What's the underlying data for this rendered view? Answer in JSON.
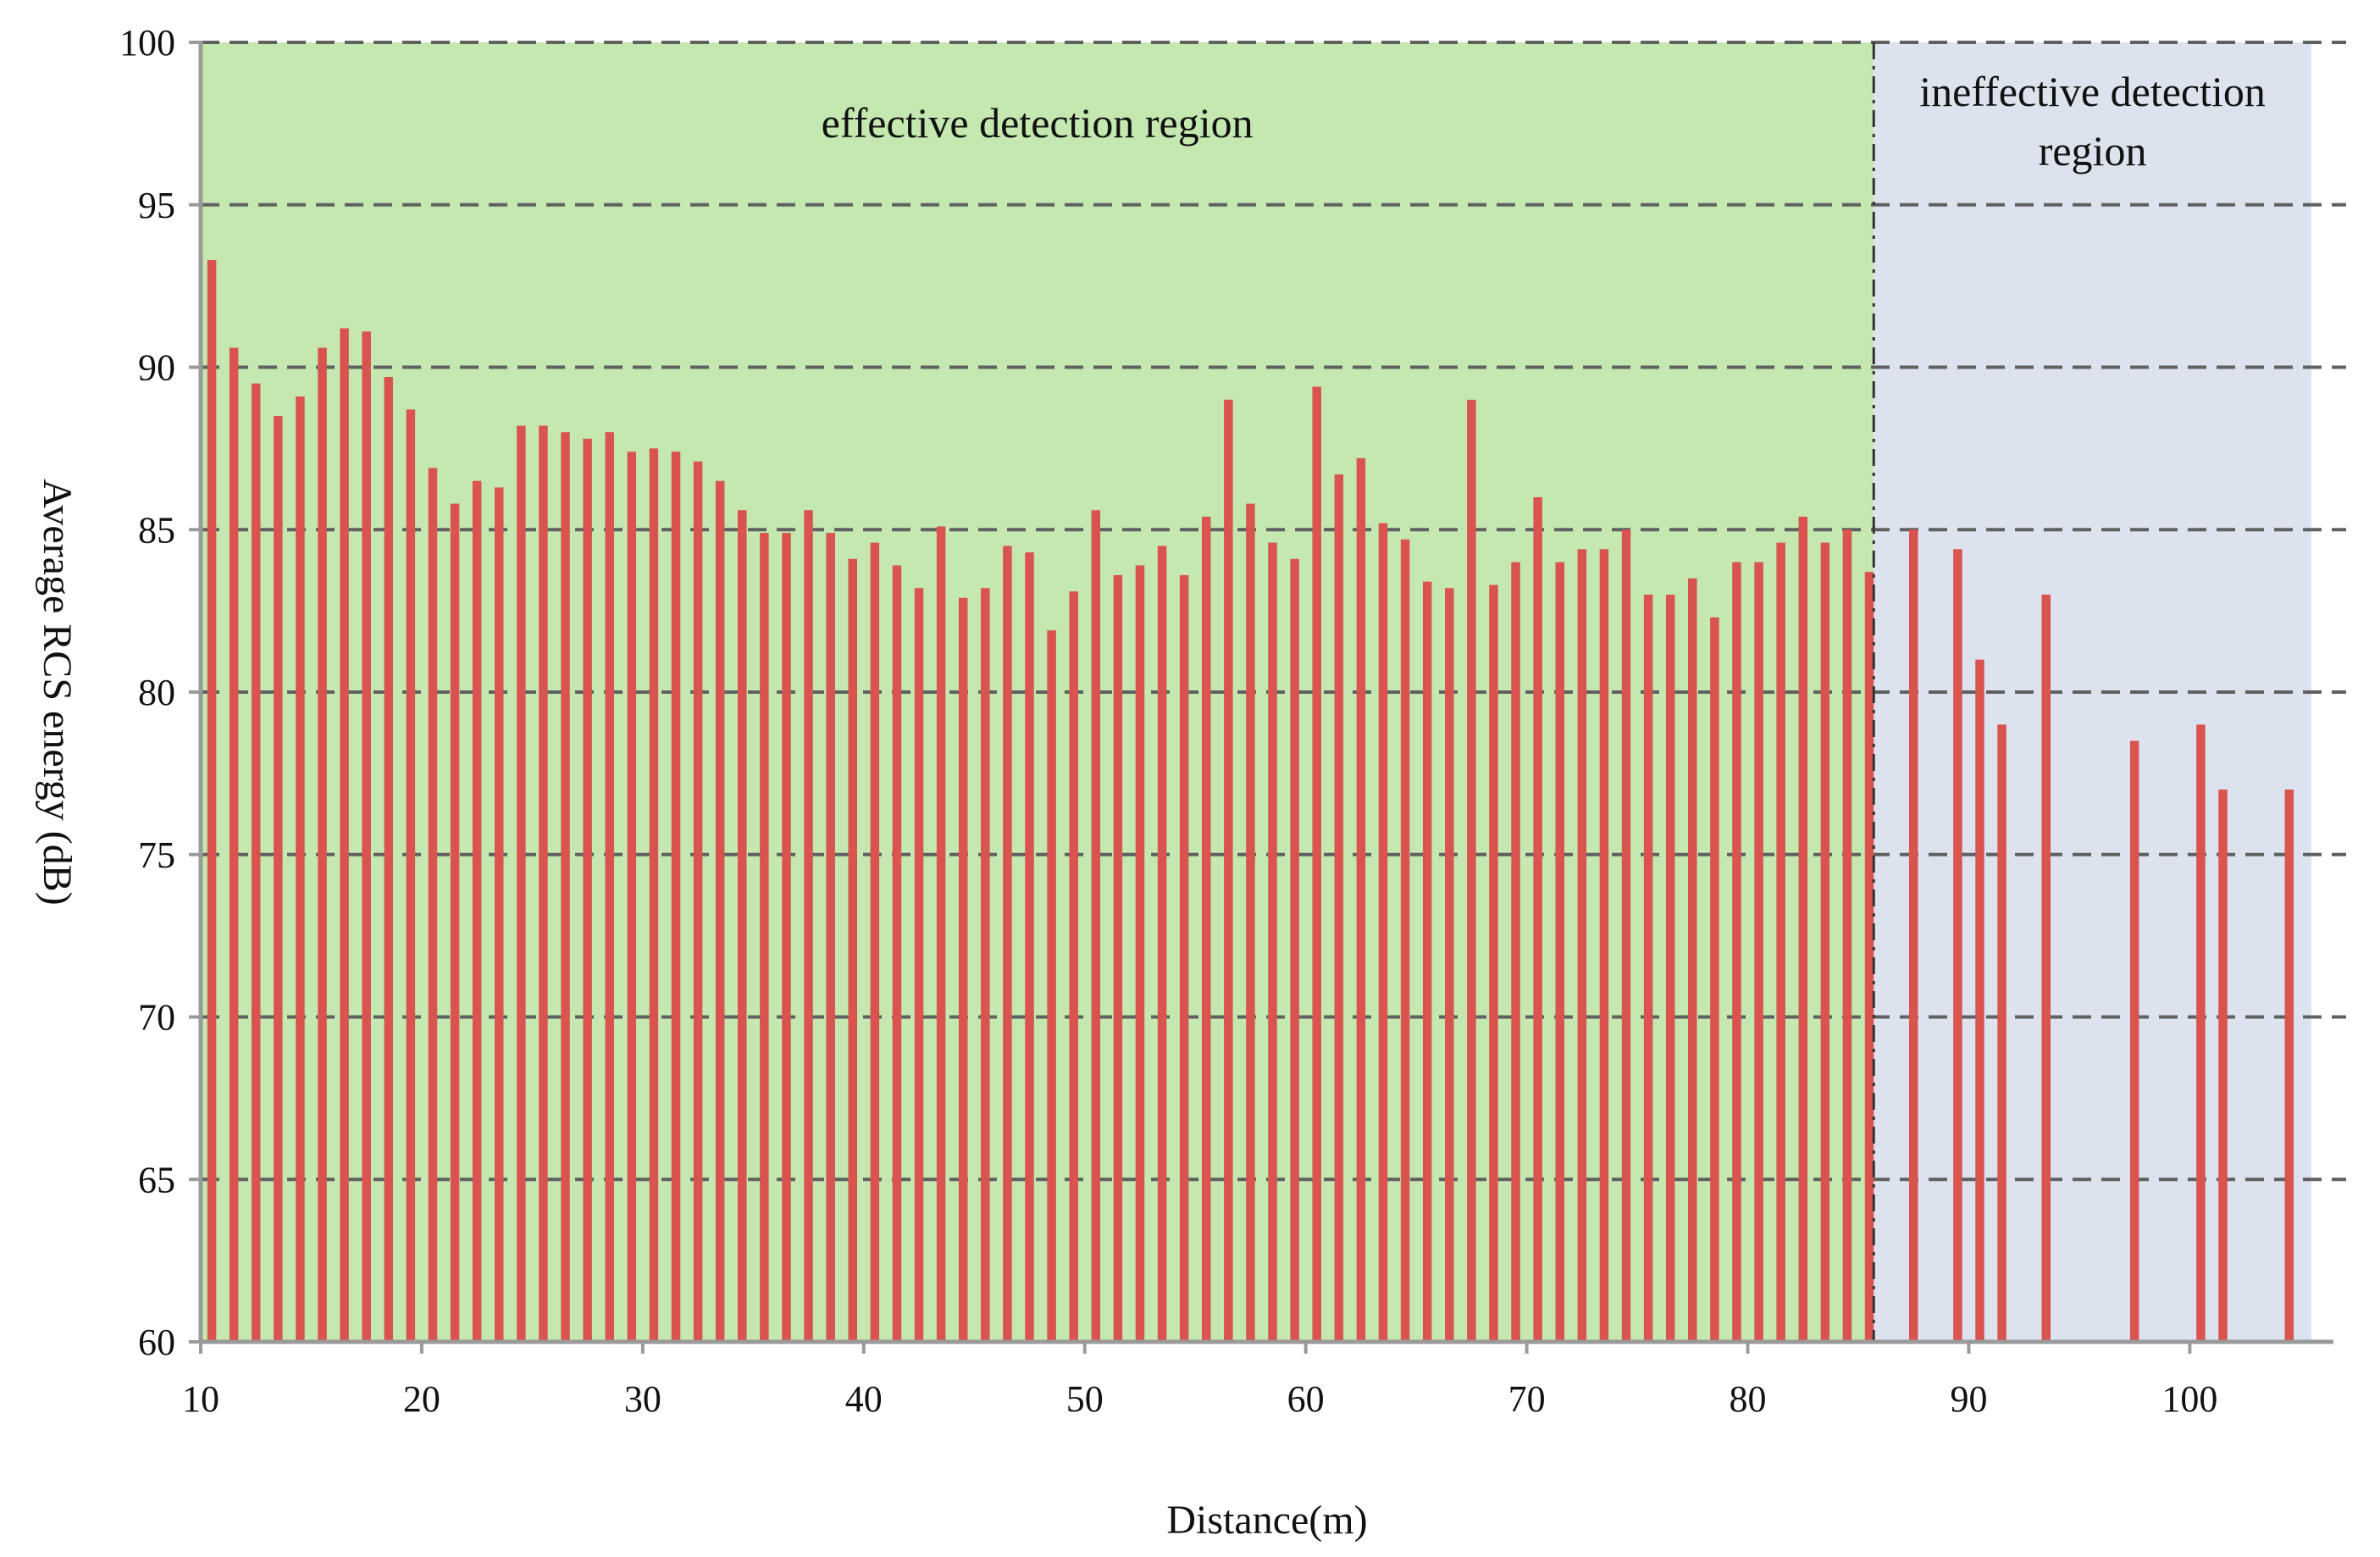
{
  "chart_data": {
    "type": "bar",
    "title": "",
    "xlabel": "Distance(m)",
    "ylabel": "Average RCS energy (dB)",
    "xlim": [
      10,
      106
    ],
    "ylim": [
      60,
      100
    ],
    "x_ticks": [
      10,
      20,
      30,
      40,
      50,
      60,
      70,
      80,
      90,
      100
    ],
    "y_ticks": [
      60,
      65,
      70,
      75,
      80,
      85,
      90,
      95,
      100
    ],
    "grid": "horizontal dashed",
    "colors": {
      "bar": "#d9534f",
      "effective_region": "#c5e8b0",
      "ineffective_region": "#dde3ee",
      "grid": "#606060",
      "axis": "#9a9a9a",
      "boundary": "#333333"
    },
    "regions": [
      {
        "label_lines": [
          "effective detection region"
        ],
        "x_range": [
          10,
          85.7
        ],
        "color_key": "effective_region"
      },
      {
        "label_lines": [
          "ineffective detection",
          "region"
        ],
        "x_range": [
          85.7,
          105.5
        ],
        "color_key": "ineffective_region"
      }
    ],
    "boundary_x": 85.7,
    "series": [
      {
        "name": "Average RCS energy",
        "x": [
          10.5,
          11.5,
          12.5,
          13.5,
          14.5,
          15.5,
          16.5,
          17.5,
          18.5,
          19.5,
          20.5,
          21.5,
          22.5,
          23.5,
          24.5,
          25.5,
          26.5,
          27.5,
          28.5,
          29.5,
          30.5,
          31.5,
          32.5,
          33.5,
          34.5,
          35.5,
          36.5,
          37.5,
          38.5,
          39.5,
          40.5,
          41.5,
          42.5,
          43.5,
          44.5,
          45.5,
          46.5,
          47.5,
          48.5,
          49.5,
          50.5,
          51.5,
          52.5,
          53.5,
          54.5,
          55.5,
          56.5,
          57.5,
          58.5,
          59.5,
          60.5,
          61.5,
          62.5,
          63.5,
          64.5,
          65.5,
          66.5,
          67.5,
          68.5,
          69.5,
          70.5,
          71.5,
          72.5,
          73.5,
          74.5,
          75.5,
          76.5,
          77.5,
          78.5,
          79.5,
          80.5,
          81.5,
          82.5,
          83.5,
          84.5,
          85.5,
          87.5,
          89.5,
          90.5,
          91.5,
          93.5,
          97.5,
          100.5,
          101.5,
          104.5
        ],
        "values": [
          93.3,
          90.6,
          89.5,
          88.5,
          89.1,
          90.6,
          91.2,
          91.1,
          89.7,
          88.7,
          86.9,
          85.8,
          86.5,
          86.3,
          88.2,
          88.2,
          88.0,
          87.8,
          88.0,
          87.4,
          87.5,
          87.4,
          87.1,
          86.5,
          85.6,
          84.9,
          84.9,
          85.6,
          84.9,
          84.1,
          84.6,
          83.9,
          83.2,
          85.1,
          82.9,
          83.2,
          84.5,
          84.3,
          81.9,
          83.1,
          85.6,
          83.6,
          83.9,
          84.5,
          83.6,
          85.4,
          89.0,
          85.8,
          84.6,
          84.1,
          89.4,
          86.7,
          87.2,
          85.2,
          84.7,
          83.4,
          83.2,
          89.0,
          83.3,
          84.0,
          86.0,
          84.0,
          84.4,
          84.4,
          85.0,
          83.0,
          83.0,
          83.5,
          82.3,
          84.0,
          84.0,
          84.6,
          85.4,
          84.6,
          85.0,
          83.7,
          85.0,
          84.4,
          81.0,
          79.0,
          83.0,
          78.5,
          79.0,
          77.0,
          77.0
        ]
      }
    ]
  }
}
